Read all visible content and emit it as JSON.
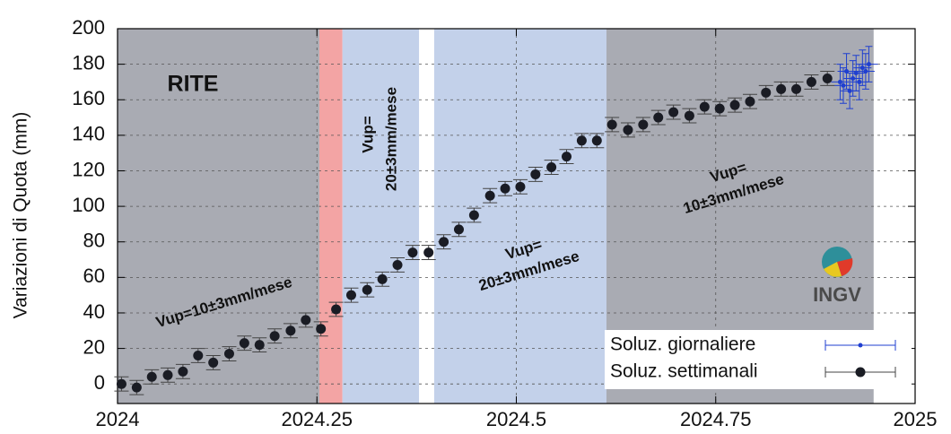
{
  "chart_data": {
    "type": "scatter",
    "y_label": "Variazioni di Quota (mm)",
    "xlim": [
      2024,
      2025
    ],
    "xticks": [
      2024,
      2024.25,
      2024.5,
      2024.75,
      2025
    ],
    "ylim": [
      -11,
      200
    ],
    "yticks": [
      0,
      20,
      40,
      60,
      80,
      100,
      120,
      140,
      160,
      180,
      200
    ],
    "grid": true,
    "legend": "lower right",
    "shaded_periods": [
      {
        "from": 2024,
        "to": 2024.253,
        "color": "#a9abb3"
      },
      {
        "from": 2024.253,
        "to": 2024.282,
        "color": "#f3a4a4"
      },
      {
        "from": 2024.282,
        "to": 2024.378,
        "color": "#c3d1ea"
      },
      {
        "from": 2024.397,
        "to": 2024.613,
        "color": "#c3d1ea"
      },
      {
        "from": 2024.613,
        "to": 2024.948,
        "color": "#a9abb3"
      }
    ],
    "annotations": [
      "RITE",
      "Vup=10±3mm/mese",
      "Vup=",
      "20±3mm/mese",
      "Vup=",
      "20±3mm/mese",
      "Vup=",
      "10±3mm/mese",
      "INGV"
    ],
    "series": [
      {
        "name": "Soluz. giornaliere",
        "color": "#1f3fd0",
        "x": [
          2024.906,
          2024.91,
          2024.914,
          2024.918,
          2024.922,
          2024.926,
          2024.93,
          2024.934,
          2024.938,
          2024.942
        ],
        "values": [
          170,
          168,
          176,
          165,
          172,
          175,
          170,
          178,
          176,
          180
        ],
        "errors": [
          10,
          10,
          10,
          10,
          10,
          10,
          10,
          10,
          10,
          10
        ]
      },
      {
        "name": "Soluz. settimanali",
        "color": "#1a1c24",
        "x": [
          2024.005,
          2024.024,
          2024.043,
          2024.063,
          2024.082,
          2024.101,
          2024.12,
          2024.14,
          2024.159,
          2024.178,
          2024.197,
          2024.217,
          2024.236,
          2024.255,
          2024.274,
          2024.293,
          2024.313,
          2024.332,
          2024.351,
          2024.37,
          2024.39,
          2024.409,
          2024.428,
          2024.447,
          2024.467,
          2024.486,
          2024.505,
          2024.524,
          2024.544,
          2024.563,
          2024.582,
          2024.601,
          2024.62,
          2024.64,
          2024.659,
          2024.678,
          2024.697,
          2024.717,
          2024.736,
          2024.755,
          2024.774,
          2024.793,
          2024.813,
          2024.832,
          2024.851,
          2024.87,
          2024.89
        ],
        "values": [
          0,
          -2,
          4,
          5,
          7,
          16,
          12,
          17,
          23,
          22,
          27,
          30,
          36,
          31,
          42,
          50,
          53,
          59,
          67,
          74,
          74,
          80,
          87,
          95,
          106,
          110,
          111,
          118,
          122,
          128,
          137,
          137,
          146,
          143,
          146,
          150,
          153,
          151,
          156,
          155,
          157,
          159,
          164,
          166,
          166,
          170,
          172
        ],
        "errors": [
          4,
          4,
          4,
          4,
          4,
          4,
          4,
          4,
          4,
          4,
          4,
          4,
          4,
          4,
          4,
          4,
          4,
          4,
          4,
          4,
          4,
          4,
          4,
          4,
          4,
          4,
          4,
          4,
          4,
          4,
          4,
          4,
          4,
          4,
          4,
          4,
          4,
          4,
          4,
          4,
          4,
          4,
          4,
          4,
          4,
          4,
          4
        ]
      }
    ]
  }
}
